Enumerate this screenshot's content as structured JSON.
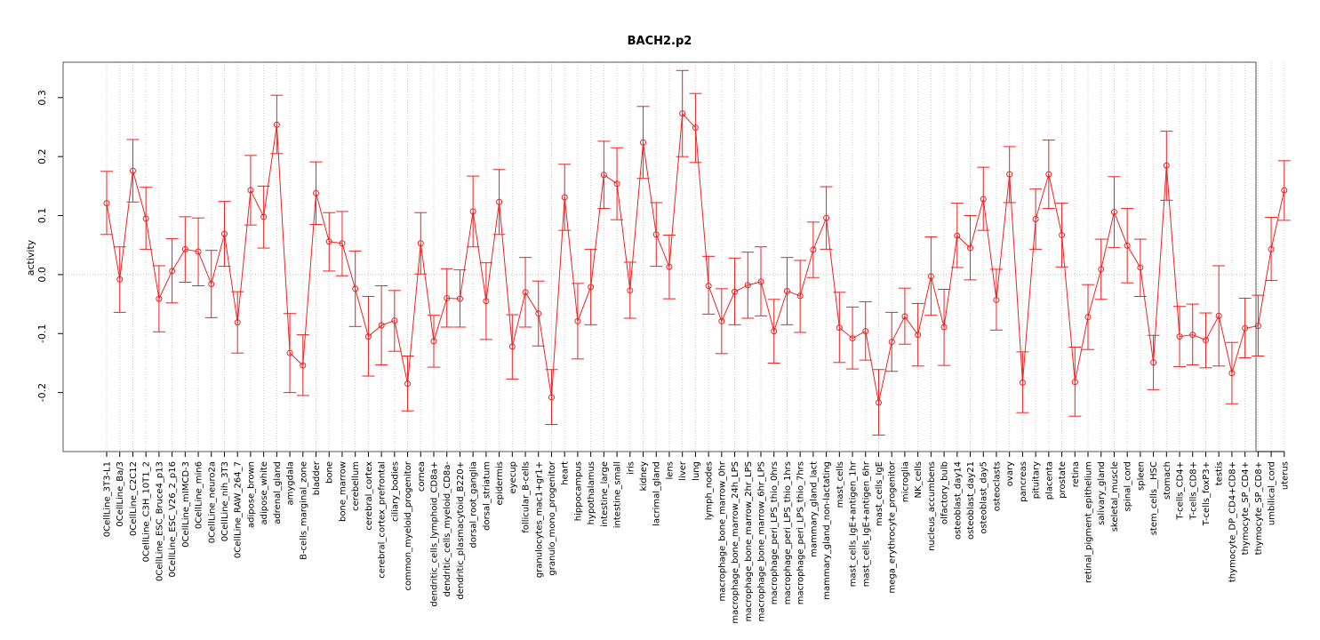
{
  "chart_data": {
    "type": "line",
    "title": "BACH2.p2",
    "xlabel": "",
    "ylabel": "activity",
    "ylim": [
      -0.3,
      0.36
    ],
    "y_ticks": [
      -0.2,
      -0.1,
      0.0,
      0.1,
      0.2,
      0.3
    ],
    "y_tick_labels": [
      "-0.2",
      "-0.1",
      "0.0",
      "0.1",
      "0.2",
      "0.3"
    ],
    "reference_line": 0.0,
    "grid": "vertical dotted",
    "colors": {
      "series": "#ee2222",
      "grid": "#cccccc",
      "frame": "#555555"
    },
    "categories": [
      "0CellLine_3T3-L1",
      "0CellLine_Ba/3",
      "0CellLine_C2C12",
      "0CellLine_C3H_10T1_2",
      "0CellLine_ESC_Bruce4_p13",
      "0CellLine_ESC_V26_2_p16",
      "0CellLine_mIMCD-3",
      "0CellLine_min6",
      "0CellLine_neuro2a",
      "0CellLine_nih_3T3",
      "0CellLine_RAW_264_7",
      "adipose_brown",
      "adipose_white",
      "adrenal_gland",
      "amygdala",
      "B-cells_marginal_zone",
      "bladder",
      "bone",
      "bone_marrow",
      "cerebellum",
      "cerebral_cortex",
      "cerebral_cortex_prefrontal",
      "ciliary_bodies",
      "common_myeloid_progenitor",
      "cornea",
      "dendritic_cells_lymphoid_CD8a+",
      "dendritic_cells_myeloid_CD8a-",
      "dendritic_plasmacytoid_B220+",
      "dorsal_root_ganglia",
      "dorsal_striatum",
      "epidermis",
      "eyecup",
      "follicular_B-cells",
      "granulocytes_mac1+gr1+",
      "granulo_mono_progenitor",
      "heart",
      "hippocampus",
      "hypothalamus",
      "intestine_large",
      "intestine_small",
      "iris",
      "kidney",
      "lacrimal_gland",
      "lens",
      "liver",
      "lung",
      "lymph_nodes",
      "macrophage_bone_marrow_0hr",
      "macrophage_bone_marrow_24h_LPS",
      "macrophage_bone_marrow_2hr_LPS",
      "macrophage_bone_marrow_6hr_LPS",
      "macrophage_peri_LPS_thio_0hrs",
      "macrophage_peri_LPS_thio_1hrs",
      "macrophage_peri_LPS_thio_7hrs",
      "mammary_gland_lact",
      "mammary_gland_non-lactating",
      "mast_cells",
      "mast_cells_IgE+antigen_1hr",
      "mast_cells_IgE+antigen_6hr",
      "mast_cells_IgE",
      "mega_erythrocyte_progenitor",
      "microglia",
      "NK_cells",
      "nucleus_accumbens",
      "olfactory_bulb",
      "osteoblast_day14",
      "osteoblast_day21",
      "osteoblast_day5",
      "osteoclasts",
      "ovary",
      "pancreas",
      "pituitary",
      "placenta",
      "prostate",
      "retina",
      "retinal_pigment_epithelium",
      "salivary_gland",
      "skeletal_muscle",
      "spinal_cord",
      "spleen",
      "stem_cells__HSC",
      "stomach",
      "T-cells_CD4+",
      "T-cells_CD8+",
      "T-cells_foxP3+",
      "testis",
      "thymocyte_DP_CD4+CD8+",
      "thymocyte_SP_CD4+",
      "thymocyte_SP_CD8+",
      "umbilical_cord",
      "uterus"
    ],
    "series": [
      {
        "values": [
          0.121,
          -0.008,
          0.176,
          0.095,
          -0.041,
          0.006,
          0.043,
          0.039,
          -0.016,
          0.069,
          -0.081,
          0.143,
          0.098,
          0.254,
          -0.133,
          -0.154,
          0.138,
          0.056,
          0.053,
          -0.024,
          -0.105,
          -0.086,
          -0.078,
          -0.185,
          0.053,
          -0.113,
          -0.04,
          -0.041,
          0.107,
          -0.045,
          0.123,
          -0.122,
          -0.03,
          -0.066,
          -0.208,
          0.131,
          -0.079,
          -0.021,
          0.169,
          0.154,
          -0.027,
          0.224,
          0.068,
          0.013,
          0.273,
          0.249,
          -0.019,
          -0.079,
          -0.029,
          -0.018,
          -0.012,
          -0.096,
          -0.028,
          -0.036,
          0.042,
          0.096,
          -0.09,
          -0.108,
          -0.096,
          -0.217,
          -0.114,
          -0.071,
          -0.102,
          -0.003,
          -0.089,
          0.066,
          0.045,
          0.128,
          -0.043,
          0.17,
          -0.183,
          0.094,
          0.17,
          0.067,
          -0.182,
          -0.072,
          0.009,
          0.106,
          0.049,
          0.012,
          -0.149,
          0.185,
          -0.105,
          -0.102,
          -0.111,
          -0.07,
          -0.167,
          -0.091,
          -0.087,
          0.043,
          0.143
        ],
        "lower": [
          0.068,
          -0.064,
          0.123,
          0.043,
          -0.097,
          -0.048,
          -0.013,
          -0.019,
          -0.073,
          0.014,
          -0.133,
          0.084,
          0.045,
          0.205,
          -0.2,
          -0.205,
          0.085,
          0.006,
          -0.002,
          -0.088,
          -0.172,
          -0.153,
          -0.13,
          -0.231,
          0.001,
          -0.157,
          -0.089,
          -0.089,
          0.047,
          -0.11,
          0.068,
          -0.177,
          -0.089,
          -0.121,
          -0.254,
          0.075,
          -0.143,
          -0.085,
          0.112,
          0.093,
          -0.074,
          0.163,
          0.014,
          -0.041,
          0.2,
          0.19,
          -0.067,
          -0.134,
          -0.085,
          -0.074,
          -0.07,
          -0.15,
          -0.085,
          -0.098,
          -0.005,
          0.043,
          -0.149,
          -0.16,
          -0.145,
          -0.272,
          -0.164,
          -0.118,
          -0.155,
          -0.069,
          -0.154,
          0.012,
          -0.009,
          0.075,
          -0.094,
          0.122,
          -0.234,
          0.043,
          0.112,
          0.013,
          -0.24,
          -0.127,
          -0.042,
          0.046,
          -0.014,
          -0.037,
          -0.195,
          0.126,
          -0.156,
          -0.153,
          -0.158,
          -0.155,
          -0.219,
          -0.141,
          -0.138,
          -0.01,
          0.092
        ],
        "upper": [
          0.175,
          0.047,
          0.229,
          0.148,
          0.015,
          0.061,
          0.098,
          0.096,
          0.041,
          0.124,
          -0.029,
          0.202,
          0.15,
          0.304,
          -0.066,
          -0.102,
          0.191,
          0.105,
          0.107,
          0.04,
          -0.037,
          -0.019,
          -0.027,
          -0.138,
          0.105,
          -0.069,
          0.01,
          0.008,
          0.167,
          0.02,
          0.178,
          -0.068,
          0.029,
          -0.011,
          -0.161,
          0.187,
          -0.015,
          0.043,
          0.226,
          0.215,
          0.021,
          0.285,
          0.122,
          0.067,
          0.346,
          0.307,
          0.031,
          -0.024,
          0.028,
          0.038,
          0.047,
          -0.042,
          0.029,
          0.024,
          0.089,
          0.149,
          -0.03,
          -0.055,
          -0.046,
          -0.161,
          -0.064,
          -0.023,
          -0.049,
          0.064,
          -0.025,
          0.121,
          0.1,
          0.182,
          0.009,
          0.217,
          -0.131,
          0.145,
          0.228,
          0.121,
          -0.123,
          -0.017,
          0.06,
          0.166,
          0.112,
          0.06,
          -0.103,
          0.243,
          -0.054,
          -0.05,
          -0.065,
          0.015,
          -0.115,
          -0.04,
          -0.035,
          0.097,
          0.193
        ]
      }
    ]
  }
}
